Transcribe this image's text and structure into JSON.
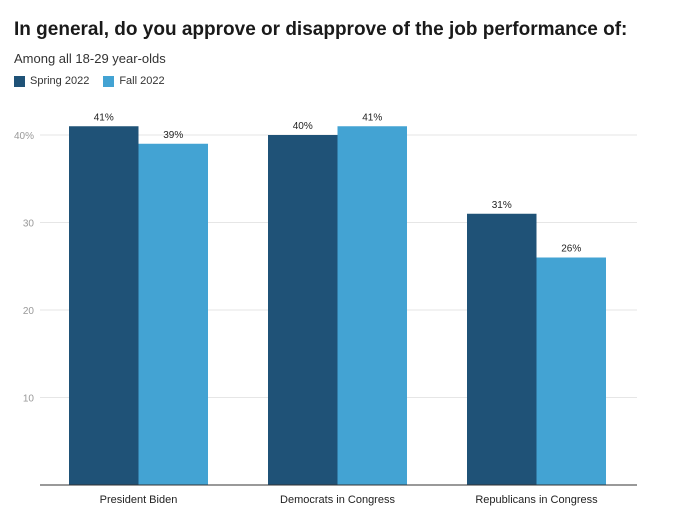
{
  "chart_data": {
    "type": "bar",
    "title": "In general, do you approve or disapprove of the job performance of:",
    "subtitle": "Among all 18-29 year-olds",
    "categories": [
      "President Biden",
      "Democrats in Congress",
      "Republicans in Congress"
    ],
    "series": [
      {
        "name": "Spring 2022",
        "color": "#1f5277",
        "values": [
          41,
          40,
          31
        ],
        "labels": [
          "41%",
          "40%",
          "31%"
        ]
      },
      {
        "name": "Fall 2022",
        "color": "#43a3d3",
        "values": [
          39,
          41,
          26
        ],
        "labels": [
          "39%",
          "41%",
          "26%"
        ]
      }
    ],
    "yticks": [
      10,
      20,
      30,
      40
    ],
    "ytick_labels": [
      "10",
      "20",
      "30",
      "40%"
    ],
    "ylim": [
      0,
      41
    ],
    "xlabel": "",
    "ylabel": "",
    "grid": true,
    "legend_position": "top-left"
  }
}
